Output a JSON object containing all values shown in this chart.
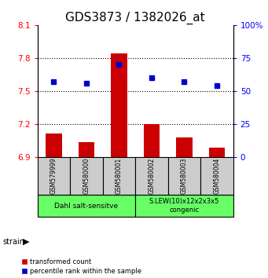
{
  "title": "GDS3873 / 1382026_at",
  "samples": [
    "GSM579999",
    "GSM580000",
    "GSM580001",
    "GSM580002",
    "GSM580003",
    "GSM580004"
  ],
  "bar_values": [
    7.11,
    7.03,
    7.84,
    7.2,
    7.08,
    6.98
  ],
  "bar_base": 6.9,
  "percentile_values": [
    57,
    56,
    70,
    60,
    57,
    54
  ],
  "ylim_left": [
    6.9,
    8.1
  ],
  "ylim_right": [
    0,
    100
  ],
  "yticks_left": [
    6.9,
    7.2,
    7.5,
    7.8,
    8.1
  ],
  "yticks_right": [
    0,
    25,
    50,
    75,
    100
  ],
  "ytick_labels_left": [
    "6.9",
    "7.2",
    "7.5",
    "7.8",
    "8.1"
  ],
  "ytick_labels_right": [
    "0",
    "25",
    "50",
    "75",
    "100%"
  ],
  "bar_color": "#cc0000",
  "dot_color": "#0000cc",
  "group1_label": "Dahl salt-sensitve",
  "group2_label": "S.LEW(10)x12x2x3x5\ncongenic",
  "group1_indices": [
    0,
    1,
    2
  ],
  "group2_indices": [
    3,
    4,
    5
  ],
  "group_bg_color": "#66ff66",
  "sample_bg_color": "#cccccc",
  "legend_red_label": "transformed count",
  "legend_blue_label": "percentile rank within the sample",
  "strain_label": "strain",
  "title_fontsize": 11,
  "tick_fontsize": 7.5,
  "hgrid_values": [
    7.2,
    7.5,
    7.8
  ]
}
